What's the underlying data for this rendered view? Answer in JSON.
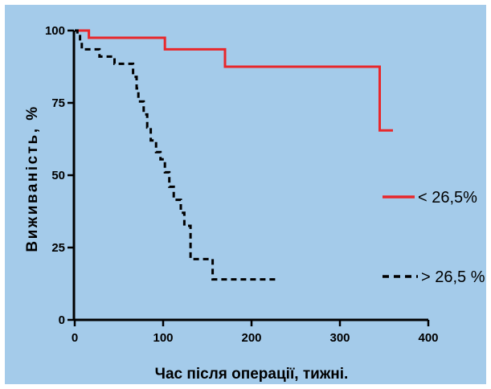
{
  "colors": {
    "background": "#a4cbea",
    "border": "#ffffff",
    "axis": "#000000",
    "series_low": "#e8272b",
    "series_high": "#000000"
  },
  "chart_data": {
    "type": "line",
    "subtype": "kaplan-meier step",
    "title": "",
    "xlabel": "Час після операції, тижні.",
    "ylabel": "Виживаність, %",
    "xlim": [
      0,
      400
    ],
    "ylim": [
      0,
      100
    ],
    "xticks": [
      0,
      100,
      200,
      300,
      400
    ],
    "yticks": [
      0,
      25,
      50,
      75,
      100
    ],
    "tick_labels": {
      "x": [
        "0",
        "100",
        "200",
        "300",
        "400"
      ],
      "y": [
        "0",
        "25",
        "50",
        "75",
        "100"
      ]
    },
    "grid": false,
    "legend_position": "right",
    "series": [
      {
        "name": "< 26,5%",
        "style": "solid",
        "color": "#e8272b",
        "step_points": [
          [
            0,
            100
          ],
          [
            16,
            100
          ],
          [
            16,
            97.5
          ],
          [
            102,
            97.5
          ],
          [
            102,
            93.5
          ],
          [
            170,
            93.5
          ],
          [
            170,
            87.5
          ],
          [
            345,
            87.5
          ],
          [
            345,
            65.5
          ],
          [
            360,
            65.5
          ]
        ]
      },
      {
        "name": "> 26,5 %",
        "style": "dashed",
        "color": "#000000",
        "step_points": [
          [
            0,
            100
          ],
          [
            3,
            100
          ],
          [
            3,
            98.5
          ],
          [
            6,
            98.5
          ],
          [
            6,
            96
          ],
          [
            8,
            96
          ],
          [
            8,
            93.5
          ],
          [
            28,
            93.5
          ],
          [
            28,
            91
          ],
          [
            45,
            91
          ],
          [
            45,
            88.5
          ],
          [
            66,
            88.5
          ],
          [
            66,
            84
          ],
          [
            70,
            84
          ],
          [
            70,
            80
          ],
          [
            72,
            80
          ],
          [
            72,
            75.5
          ],
          [
            78,
            75.5
          ],
          [
            78,
            71
          ],
          [
            82,
            71
          ],
          [
            82,
            66.5
          ],
          [
            86,
            66.5
          ],
          [
            86,
            62
          ],
          [
            92,
            62
          ],
          [
            92,
            58
          ],
          [
            97,
            58
          ],
          [
            97,
            55.5
          ],
          [
            102,
            55.5
          ],
          [
            102,
            51
          ],
          [
            107,
            51
          ],
          [
            107,
            46
          ],
          [
            112,
            46
          ],
          [
            112,
            41.5
          ],
          [
            120,
            41.5
          ],
          [
            120,
            37
          ],
          [
            124,
            37
          ],
          [
            124,
            32.5
          ],
          [
            131,
            32.5
          ],
          [
            131,
            21
          ],
          [
            156,
            21
          ],
          [
            156,
            14
          ],
          [
            230,
            14
          ]
        ]
      }
    ]
  }
}
